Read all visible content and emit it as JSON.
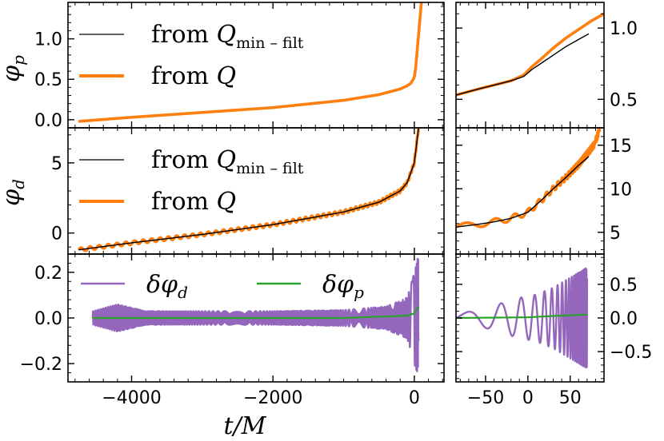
{
  "figure": {
    "shared_xlabel": "t/M",
    "colors": {
      "orange": "#ff7f0e",
      "black": "#000000",
      "purple": "#9467bd",
      "green": "#2ca02c"
    }
  },
  "chart_data": [
    {
      "id": "phi_p_long",
      "type": "line",
      "ylabel": "φp",
      "xlim": [
        -4900,
        420
      ],
      "ylim": [
        -0.1,
        1.45
      ],
      "yticks": [
        0.0,
        0.5,
        1.0
      ],
      "ytick_labels": [
        "0.0",
        "0.5",
        "1.0"
      ],
      "legend": [
        {
          "label_main": "from Q",
          "label_sub": "min – filt",
          "color": "#000000",
          "width": 1.3
        },
        {
          "label_main": "from Q",
          "label_sub": "",
          "color": "#ff7f0e",
          "width": 4
        }
      ],
      "series": [
        {
          "name": "from Q (min-filt)",
          "color": "#000000",
          "x": [
            -4750,
            -4000,
            -3000,
            -2000,
            -1000,
            -500,
            -200,
            -100,
            -50,
            0,
            20,
            40,
            60,
            80
          ],
          "y": [
            -0.02,
            0.03,
            0.09,
            0.15,
            0.24,
            0.31,
            0.38,
            0.42,
            0.45,
            0.52,
            0.62,
            0.78,
            0.95,
            1.15
          ]
        },
        {
          "name": "from Q",
          "color": "#ff7f0e",
          "x": [
            -4750,
            -4000,
            -3000,
            -2000,
            -1000,
            -500,
            -200,
            -100,
            -50,
            0,
            20,
            40,
            60,
            80,
            100
          ],
          "y": [
            -0.02,
            0.03,
            0.09,
            0.15,
            0.24,
            0.31,
            0.38,
            0.42,
            0.45,
            0.52,
            0.65,
            0.85,
            1.05,
            1.25,
            1.45
          ]
        }
      ]
    },
    {
      "id": "phi_p_zoom",
      "type": "line",
      "xlim": [
        -85,
        90
      ],
      "ylim": [
        0.3,
        1.18
      ],
      "yticks": [
        0.5,
        1.0
      ],
      "ytick_labels": [
        "0.5",
        "1.0"
      ],
      "series": [
        {
          "name": "from Q",
          "color": "#ff7f0e",
          "x": [
            -85,
            -60,
            -40,
            -20,
            -5,
            5,
            15,
            30,
            45,
            60,
            75,
            90
          ],
          "y": [
            0.53,
            0.57,
            0.6,
            0.63,
            0.67,
            0.73,
            0.78,
            0.86,
            0.93,
            0.99,
            1.05,
            1.1
          ]
        },
        {
          "name": "from Q (min-filt)",
          "color": "#000000",
          "x": [
            -85,
            -60,
            -40,
            -20,
            -5,
            5,
            15,
            30,
            45,
            60,
            72
          ],
          "y": [
            0.53,
            0.57,
            0.6,
            0.63,
            0.66,
            0.71,
            0.75,
            0.81,
            0.87,
            0.92,
            0.96
          ]
        }
      ]
    },
    {
      "id": "phi_d_long",
      "type": "line",
      "ylabel": "φd",
      "xlim": [
        -4900,
        420
      ],
      "ylim": [
        -1.5,
        7.5
      ],
      "yticks": [
        0,
        5
      ],
      "ytick_labels": [
        "0",
        "5"
      ],
      "legend": [
        {
          "label_main": "from Q",
          "label_sub": "min – filt",
          "color": "#000000",
          "width": 1.3
        },
        {
          "label_main": "from Q",
          "label_sub": "",
          "color": "#ff7f0e",
          "width": 4
        }
      ],
      "series": [
        {
          "name": "from Q",
          "color": "#ff7f0e",
          "x": [
            -4750,
            -4000,
            -3000,
            -2000,
            -1000,
            -500,
            -200,
            -100,
            0,
            60
          ],
          "y": [
            -1.2,
            -0.7,
            -0.1,
            0.6,
            1.5,
            2.2,
            3.0,
            3.6,
            5.0,
            7.5
          ],
          "oscillation_amplitude": 0.13
        },
        {
          "name": "from Q (min-filt)",
          "color": "#000000",
          "x": [
            -4750,
            -4000,
            -3000,
            -2000,
            -1000,
            -500,
            -200,
            -100,
            0,
            60
          ],
          "y": [
            -1.2,
            -0.7,
            -0.1,
            0.6,
            1.5,
            2.2,
            3.0,
            3.6,
            5.0,
            7.5
          ]
        }
      ]
    },
    {
      "id": "phi_d_zoom",
      "type": "line",
      "xlim": [
        -85,
        90
      ],
      "ylim": [
        2.5,
        17
      ],
      "yticks": [
        5,
        10,
        15
      ],
      "ytick_labels": [
        "5",
        "10",
        "15"
      ],
      "series": [
        {
          "name": "from Q",
          "color": "#ff7f0e",
          "x": [
            -85,
            -60,
            -40,
            -20,
            0,
            15,
            30,
            45,
            60,
            70,
            78,
            85
          ],
          "y": [
            5.6,
            5.9,
            6.2,
            6.6,
            7.3,
            8.6,
            10.0,
            11.3,
            12.8,
            14.0,
            15.0,
            16.8
          ],
          "oscillation_amplitude": 0.35
        },
        {
          "name": "from Q (min-filt)",
          "color": "#000000",
          "x": [
            -85,
            -60,
            -40,
            -20,
            0,
            15,
            30,
            45,
            60,
            72
          ],
          "y": [
            5.6,
            5.9,
            6.2,
            6.6,
            7.3,
            8.6,
            10.0,
            11.3,
            12.7,
            13.7
          ]
        }
      ]
    },
    {
      "id": "delta_long",
      "type": "line",
      "xlabel": "t/M",
      "xlim": [
        -4900,
        420
      ],
      "ylim": [
        -0.28,
        0.28
      ],
      "yticks": [
        -0.2,
        0.0,
        0.2
      ],
      "ytick_labels": [
        "−0.2",
        "0.0",
        "0.2"
      ],
      "xticks": [
        -4000,
        -2000,
        0
      ],
      "xtick_labels": [
        "−4000",
        "−2000",
        "0"
      ],
      "legend": [
        {
          "label": "δφd",
          "color": "#9467bd"
        },
        {
          "label": "δφp",
          "color": "#2ca02c"
        }
      ],
      "series": [
        {
          "name": "δφd",
          "color": "#9467bd",
          "envelope_t": [
            -4550,
            -4200,
            -3800,
            -2000,
            -1000,
            -400,
            -100,
            0,
            60
          ],
          "envelope_amp": [
            0.03,
            0.06,
            0.03,
            0.03,
            0.035,
            0.05,
            0.09,
            0.2,
            0.28
          ]
        },
        {
          "name": "δφp",
          "color": "#2ca02c",
          "x": [
            -4550,
            -1000,
            -100,
            0,
            60
          ],
          "y": [
            0.0,
            0.0,
            0.01,
            0.02,
            0.05
          ]
        }
      ]
    },
    {
      "id": "delta_zoom",
      "type": "line",
      "xlim": [
        -85,
        90
      ],
      "ylim": [
        -0.95,
        0.95
      ],
      "yticks": [
        -0.5,
        0.0,
        0.5
      ],
      "ytick_labels": [
        "−0.5",
        "0.0",
        "0.5"
      ],
      "xticks": [
        -50,
        0,
        50
      ],
      "xtick_labels": [
        "−50",
        "0",
        "50"
      ],
      "series": [
        {
          "name": "δφd",
          "color": "#9467bd",
          "envelope_t": [
            -85,
            -50,
            -10,
            10,
            30,
            50,
            70
          ],
          "envelope_amp": [
            0.05,
            0.15,
            0.3,
            0.35,
            0.45,
            0.6,
            0.75
          ]
        },
        {
          "name": "δφp",
          "color": "#2ca02c",
          "x": [
            -85,
            0,
            30,
            70
          ],
          "y": [
            0.0,
            0.01,
            0.03,
            0.05
          ]
        }
      ]
    }
  ]
}
